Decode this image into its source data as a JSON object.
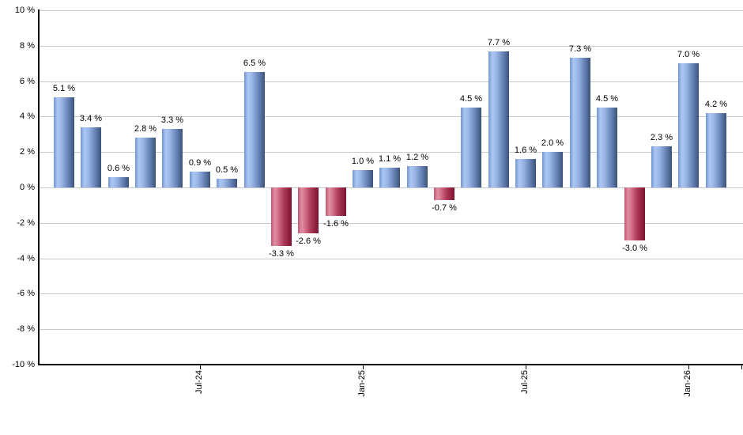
{
  "chart_data": {
    "type": "bar",
    "title": "",
    "xlabel": "",
    "ylabel": "",
    "ylim": [
      -10,
      10
    ],
    "y_tick_step": 2,
    "y_tick_suffix": " %",
    "grid": true,
    "legend": "none",
    "values": [
      5.1,
      3.4,
      0.6,
      2.8,
      3.3,
      0.9,
      0.5,
      6.5,
      -3.3,
      -2.6,
      -1.6,
      1.0,
      1.1,
      1.2,
      -0.7,
      4.5,
      7.7,
      1.6,
      2.0,
      7.3,
      4.5,
      -3.0,
      2.3,
      7.0,
      4.2
    ],
    "bar_labels": [
      "5.1 %",
      "3.4 %",
      "0.6 %",
      "2.8 %",
      "3.3 %",
      "0.9 %",
      "0.5 %",
      "6.5 %",
      "-3.3 %",
      "-2.6 %",
      "-1.6 %",
      "1.0 %",
      "1.1 %",
      "1.2 %",
      "-0.7 %",
      "4.5 %",
      "7.7 %",
      "1.6 %",
      "2.0 %",
      "7.3 %",
      "4.5 %",
      "-3.0 %",
      "2.3 %",
      "7.0 %",
      "4.2 %"
    ],
    "y_tick_labels": [
      "10 %",
      "8 %",
      "6 %",
      "4 %",
      "2 %",
      "0 %",
      "-2 %",
      "-4 %",
      "-6 %",
      "-8 %",
      "-10 %"
    ],
    "x_ticks": [
      {
        "label": "Jul-24",
        "bar_index": 5
      },
      {
        "label": "Jan-25",
        "bar_index": 11
      },
      {
        "label": "Jul-25",
        "bar_index": 17
      },
      {
        "label": "Jan-26",
        "bar_index": 23
      }
    ],
    "colors": {
      "positive_bar_gradient": [
        "#7295cf",
        "#abc7f2",
        "#9ab6e6",
        "#7b98cb",
        "#5c77a8",
        "#3b5277"
      ],
      "negative_bar_gradient": [
        "#c25672",
        "#e18fa2",
        "#cf6983",
        "#b24060",
        "#982845",
        "#7d1434"
      ],
      "gridline": "#c9c9c9",
      "axis": "#000000",
      "label_text": "#000000",
      "background": "#ffffff"
    }
  }
}
